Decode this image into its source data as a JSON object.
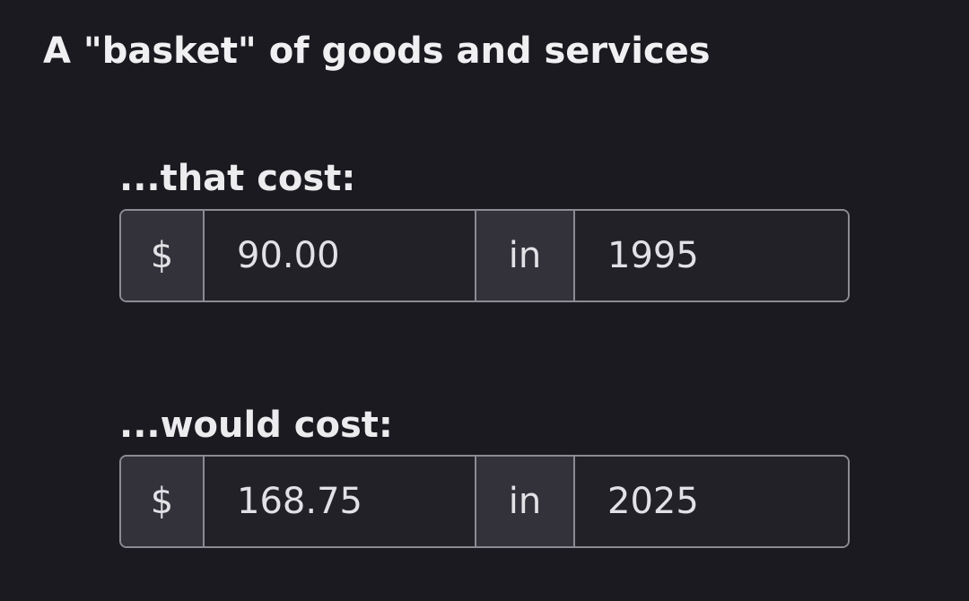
{
  "header": {
    "title": "A \"basket\" of goods and services"
  },
  "rows": [
    {
      "label": "...that cost:",
      "currency": "$",
      "amount": "90.00",
      "connector": "in",
      "year": "1995"
    },
    {
      "label": "...would cost:",
      "currency": "$",
      "amount": "168.75",
      "connector": "in",
      "year": "2025"
    }
  ]
}
